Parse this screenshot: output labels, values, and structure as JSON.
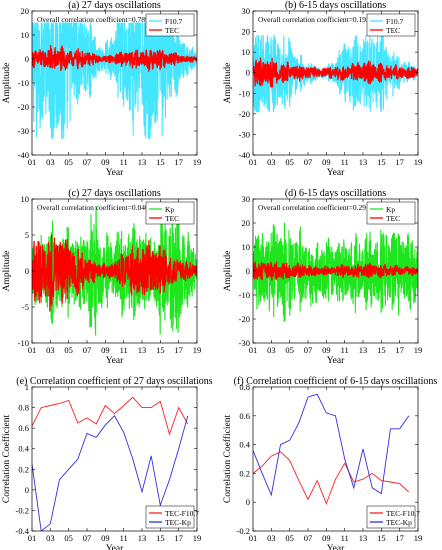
{
  "figure": {
    "tick_years": [
      "01",
      "03",
      "05",
      "07",
      "09",
      "11",
      "13",
      "15",
      "17",
      "19"
    ]
  },
  "chart_data": [
    {
      "type": "line",
      "panel": "a",
      "title": "(a) 27 days oscillations",
      "annotation": "Overall correlation coefficient=0.789",
      "xlabel": "Year",
      "ylabel": "Amplitude",
      "xlim": [
        2001,
        2019
      ],
      "ylim": [
        -40,
        20
      ],
      "yticks": [
        -40,
        -30,
        -20,
        -10,
        0,
        10,
        20
      ],
      "grid": false,
      "legend_position": "top-right",
      "series": [
        {
          "name": "F10.7",
          "color": "#44e5ff",
          "envelope": [
            [
              2001,
              25
            ],
            [
              2002,
              18
            ],
            [
              2003,
              20
            ],
            [
              2004,
              30
            ],
            [
              2005,
              22
            ],
            [
              2006,
              14
            ],
            [
              2007,
              12
            ],
            [
              2008,
              5
            ],
            [
              2009,
              4
            ],
            [
              2010,
              8
            ],
            [
              2011,
              16
            ],
            [
              2012,
              20
            ],
            [
              2013,
              18
            ],
            [
              2014,
              26
            ],
            [
              2015,
              22
            ],
            [
              2016,
              14
            ],
            [
              2017,
              8
            ],
            [
              2018,
              4
            ],
            [
              2019,
              3
            ]
          ],
          "min_value": -33,
          "max_value": 15
        },
        {
          "name": "TEC",
          "color": "#ff0000",
          "envelope": [
            [
              2001,
              3
            ],
            [
              2002,
              3.5
            ],
            [
              2003,
              4
            ],
            [
              2004,
              4.5
            ],
            [
              2005,
              3.5
            ],
            [
              2006,
              3
            ],
            [
              2007,
              2.5
            ],
            [
              2008,
              1.5
            ],
            [
              2009,
              1
            ],
            [
              2010,
              1.5
            ],
            [
              2011,
              2.5
            ],
            [
              2012,
              3
            ],
            [
              2013,
              3
            ],
            [
              2014,
              4
            ],
            [
              2015,
              3.5
            ],
            [
              2016,
              2.5
            ],
            [
              2017,
              1.5
            ],
            [
              2018,
              1
            ],
            [
              2019,
              1
            ]
          ]
        }
      ]
    },
    {
      "type": "line",
      "panel": "b",
      "title": "(b) 6-15 days oscillations",
      "annotation": "Overall correlation coefficient=0.192",
      "xlabel": "Year",
      "ylabel": "Amplitude",
      "xlim": [
        2001,
        2019
      ],
      "ylim": [
        -40,
        30
      ],
      "yticks": [
        -40,
        -30,
        -20,
        -10,
        0,
        10,
        20,
        30
      ],
      "grid": false,
      "legend_position": "top-right",
      "series": [
        {
          "name": "F10.7",
          "color": "#44e5ff",
          "envelope": [
            [
              2001,
              16
            ],
            [
              2002,
              15
            ],
            [
              2003,
              14
            ],
            [
              2004,
              12
            ],
            [
              2005,
              10
            ],
            [
              2006,
              6
            ],
            [
              2007,
              4
            ],
            [
              2008,
              2
            ],
            [
              2009,
              2
            ],
            [
              2010,
              4
            ],
            [
              2011,
              10
            ],
            [
              2012,
              12
            ],
            [
              2013,
              13
            ],
            [
              2014,
              14
            ],
            [
              2015,
              12
            ],
            [
              2016,
              8
            ],
            [
              2017,
              5
            ],
            [
              2018,
              3
            ],
            [
              2019,
              2
            ]
          ],
          "min_value": -19,
          "max_value": 18
        },
        {
          "name": "TEC",
          "color": "#ff0000",
          "envelope": [
            [
              2001,
              5
            ],
            [
              2002,
              6
            ],
            [
              2003,
              5
            ],
            [
              2004,
              4
            ],
            [
              2005,
              3.5
            ],
            [
              2006,
              3
            ],
            [
              2007,
              2.5
            ],
            [
              2008,
              2
            ],
            [
              2009,
              2
            ],
            [
              2010,
              2.5
            ],
            [
              2011,
              3
            ],
            [
              2012,
              3.5
            ],
            [
              2013,
              4
            ],
            [
              2014,
              4
            ],
            [
              2015,
              3.5
            ],
            [
              2016,
              3
            ],
            [
              2017,
              2.5
            ],
            [
              2018,
              2
            ],
            [
              2019,
              2
            ]
          ]
        }
      ]
    },
    {
      "type": "line",
      "panel": "c",
      "title": "(c) 27 days oscillations",
      "annotation": "Overall correlation coefficient=0.046",
      "xlabel": "Year",
      "ylabel": "Amplitude",
      "xlim": [
        2001,
        2019
      ],
      "ylim": [
        -10,
        10
      ],
      "yticks": [
        -10,
        -5,
        0,
        5,
        10
      ],
      "grid": false,
      "legend_position": "top-right",
      "series": [
        {
          "name": "Kp",
          "color": "#1ee51e",
          "envelope": [
            [
              2001,
              3
            ],
            [
              2002,
              3
            ],
            [
              2003,
              4
            ],
            [
              2004,
              4
            ],
            [
              2005,
              4
            ],
            [
              2006,
              3
            ],
            [
              2007,
              4
            ],
            [
              2008,
              6
            ],
            [
              2009,
              3
            ],
            [
              2010,
              3
            ],
            [
              2011,
              4
            ],
            [
              2012,
              4
            ],
            [
              2013,
              4
            ],
            [
              2014,
              3
            ],
            [
              2015,
              5
            ],
            [
              2016,
              5
            ],
            [
              2017,
              6
            ],
            [
              2018,
              3
            ],
            [
              2019,
              2
            ]
          ],
          "min_value": -9,
          "max_value": 9
        },
        {
          "name": "TEC",
          "color": "#ff0000",
          "envelope": [
            [
              2001,
              3
            ],
            [
              2002,
              4
            ],
            [
              2003,
              4
            ],
            [
              2004,
              4
            ],
            [
              2005,
              3
            ],
            [
              2006,
              2.5
            ],
            [
              2007,
              1.5
            ],
            [
              2008,
              1
            ],
            [
              2009,
              0.8
            ],
            [
              2010,
              1
            ],
            [
              2011,
              2
            ],
            [
              2012,
              2.5
            ],
            [
              2013,
              3
            ],
            [
              2014,
              3
            ],
            [
              2015,
              2.5
            ],
            [
              2016,
              2
            ],
            [
              2017,
              1.5
            ],
            [
              2018,
              1
            ],
            [
              2019,
              0.8
            ]
          ]
        }
      ]
    },
    {
      "type": "line",
      "panel": "d",
      "title": "(d) 6-15 days oscillations",
      "annotation": "Overall correlation coefficient=0.29",
      "xlabel": "Year",
      "ylabel": "Amplitude",
      "xlim": [
        2001,
        2019
      ],
      "ylim": [
        -30,
        30
      ],
      "yticks": [
        -30,
        -20,
        -10,
        0,
        10,
        20,
        30
      ],
      "grid": false,
      "legend_position": "top-right",
      "series": [
        {
          "name": "Kp",
          "color": "#1ee51e",
          "envelope": [
            [
              2001,
              10
            ],
            [
              2002,
              11
            ],
            [
              2003,
              12
            ],
            [
              2004,
              12
            ],
            [
              2005,
              12
            ],
            [
              2006,
              10
            ],
            [
              2007,
              9
            ],
            [
              2008,
              8
            ],
            [
              2009,
              8
            ],
            [
              2010,
              8
            ],
            [
              2011,
              9
            ],
            [
              2012,
              10
            ],
            [
              2013,
              10
            ],
            [
              2014,
              10
            ],
            [
              2015,
              11
            ],
            [
              2016,
              11
            ],
            [
              2017,
              11
            ],
            [
              2018,
              10
            ],
            [
              2019,
              10
            ]
          ],
          "min_value": -21,
          "max_value": 21
        },
        {
          "name": "TEC",
          "color": "#ff0000",
          "envelope": [
            [
              2001,
              3
            ],
            [
              2002,
              3.5
            ],
            [
              2003,
              3
            ],
            [
              2004,
              3
            ],
            [
              2005,
              2.5
            ],
            [
              2006,
              2.5
            ],
            [
              2007,
              2
            ],
            [
              2008,
              1.5
            ],
            [
              2009,
              1.5
            ],
            [
              2010,
              1.5
            ],
            [
              2011,
              2
            ],
            [
              2012,
              2
            ],
            [
              2013,
              2.5
            ],
            [
              2014,
              2.5
            ],
            [
              2015,
              2
            ],
            [
              2016,
              2
            ],
            [
              2017,
              1.5
            ],
            [
              2018,
              1.5
            ],
            [
              2019,
              1.5
            ]
          ]
        }
      ]
    },
    {
      "type": "line",
      "panel": "e",
      "title": "(e) Correlation coefficient of 27 days oscillations",
      "xlabel": "Year",
      "ylabel": "Correlation Coefficient",
      "xlim": [
        2001,
        2019
      ],
      "ylim": [
        -0.4,
        1.0
      ],
      "yticks": [
        -0.4,
        -0.2,
        0,
        0.2,
        0.4,
        0.6,
        0.8,
        1
      ],
      "grid": false,
      "legend_position": "bottom-right",
      "series": [
        {
          "name": "TEC-F10.7",
          "color": "#ff2020",
          "x": [
            2001,
            2002,
            2003,
            2004,
            2005,
            2006,
            2007,
            2008,
            2009,
            2010,
            2011,
            2012,
            2013,
            2014,
            2015,
            2016,
            2017,
            2018
          ],
          "values": [
            0.62,
            0.8,
            0.82,
            0.84,
            0.87,
            0.65,
            0.7,
            0.64,
            0.82,
            0.74,
            0.82,
            0.9,
            0.8,
            0.8,
            0.86,
            0.54,
            0.8,
            0.64
          ]
        },
        {
          "name": "TEC-Kp",
          "color": "#3030dd",
          "x": [
            2001,
            2002,
            2003,
            2004,
            2005,
            2006,
            2007,
            2008,
            2009,
            2010,
            2011,
            2012,
            2013,
            2014,
            2015,
            2016,
            2017,
            2018
          ],
          "values": [
            0.25,
            -0.4,
            -0.33,
            0.1,
            0.2,
            0.3,
            0.55,
            0.51,
            0.63,
            0.72,
            0.56,
            0.3,
            -0.02,
            0.33,
            -0.15,
            0.1,
            0.4,
            0.72
          ]
        }
      ]
    },
    {
      "type": "line",
      "panel": "f",
      "title": "(f) Correlation coefficient of 6-15 days oscillations",
      "xlabel": "Year",
      "ylabel": "Correlation Coefficient",
      "xlim": [
        2001,
        2019
      ],
      "ylim": [
        -0.2,
        0.8
      ],
      "yticks": [
        -0.2,
        0,
        0.2,
        0.4,
        0.6,
        0.8
      ],
      "grid": false,
      "legend_position": "bottom-right",
      "series": [
        {
          "name": "TEC-F10.7",
          "color": "#ff2020",
          "x": [
            2001,
            2002,
            2003,
            2004,
            2005,
            2006,
            2007,
            2008,
            2009,
            2010,
            2011,
            2012,
            2013,
            2014,
            2015,
            2016,
            2017,
            2018
          ],
          "values": [
            0.2,
            0.25,
            0.32,
            0.35,
            0.29,
            0.15,
            0.02,
            0.15,
            -0.01,
            0.16,
            0.27,
            0.14,
            0.16,
            0.2,
            0.15,
            0.14,
            0.13,
            0.07
          ]
        },
        {
          "name": "TEC-Kp",
          "color": "#3030dd",
          "x": [
            2001,
            2002,
            2003,
            2004,
            2005,
            2006,
            2007,
            2008,
            2009,
            2010,
            2011,
            2012,
            2013,
            2014,
            2015,
            2016,
            2017,
            2018
          ],
          "values": [
            0.36,
            0.2,
            0.05,
            0.4,
            0.43,
            0.55,
            0.73,
            0.75,
            0.62,
            0.6,
            0.3,
            0.1,
            0.37,
            0.1,
            0.06,
            0.51,
            0.51,
            0.6
          ]
        }
      ]
    }
  ]
}
